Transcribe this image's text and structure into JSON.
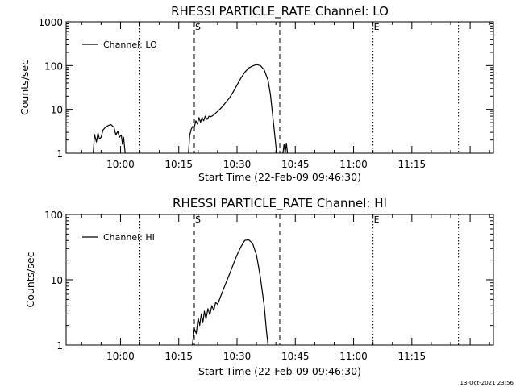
{
  "chart_data": [
    {
      "type": "line",
      "title": "RHESSI PARTICLE_RATE Channel: LO",
      "xlabel": "Start Time (22-Feb-09 09:46:30)",
      "ylabel": "Counts/sec",
      "y_scale": "log",
      "ylim": [
        1,
        1000
      ],
      "y_ticks": [
        1,
        10,
        100,
        1000
      ],
      "y_tick_labels": [
        "1",
        "10",
        "100",
        "1000"
      ],
      "xlim": [
        "09:46:30",
        "11:36:30"
      ],
      "x_ticks": [
        "10:00",
        "10:15",
        "10:30",
        "10:45",
        "11:00",
        "11:15"
      ],
      "legend_position": "top-left",
      "grid": false,
      "markers": [
        {
          "time": "10:05",
          "style": "dotted",
          "label": ""
        },
        {
          "time": "10:19",
          "style": "dashed",
          "label": "S"
        },
        {
          "time": "10:41",
          "style": "dashed",
          "label": ""
        },
        {
          "time": "11:05",
          "style": "dotted",
          "label": "E"
        },
        {
          "time": "11:27",
          "style": "dotted",
          "label": ""
        }
      ],
      "series": [
        {
          "name": "Channel: LO",
          "color": "#000000",
          "segments": [
            [
              [
                "09:53",
                1
              ],
              [
                "09:53.3",
                2.7
              ],
              [
                "09:53.8",
                1.8
              ],
              [
                "09:54.2",
                2.9
              ],
              [
                "09:54.6",
                2.1
              ],
              [
                "09:55",
                2.3
              ],
              [
                "09:55.5",
                3.4
              ],
              [
                "09:56",
                3.8
              ],
              [
                "09:56.7",
                4.2
              ],
              [
                "09:57.5",
                4.5
              ],
              [
                "09:58.3",
                3.9
              ],
              [
                "09:58.8",
                2.6
              ],
              [
                "09:59.3",
                3.2
              ],
              [
                "09:59.7",
                2.3
              ],
              [
                "10:00.2",
                2.6
              ],
              [
                "10:00.5",
                1.6
              ],
              [
                "10:00.8",
                2.3
              ],
              [
                "10:01.2",
                1
              ]
            ],
            [
              [
                "10:17.5",
                1
              ],
              [
                "10:17.8",
                2.5
              ],
              [
                "10:18.2",
                3.5
              ],
              [
                "10:18.6",
                4.1
              ],
              [
                "10:19",
                3.9
              ],
              [
                "10:19.4",
                5.5
              ],
              [
                "10:19.8",
                4.6
              ],
              [
                "10:20.2",
                6.5
              ],
              [
                "10:20.6",
                5.1
              ],
              [
                "10:21",
                6.6
              ],
              [
                "10:21.4",
                5.5
              ],
              [
                "10:21.8",
                7
              ],
              [
                "10:22.3",
                5.9
              ],
              [
                "10:22.8",
                7
              ],
              [
                "10:23.3",
                6.8
              ],
              [
                "10:24",
                7.5
              ],
              [
                "10:25",
                9
              ],
              [
                "10:26",
                11
              ],
              [
                "10:27",
                14
              ],
              [
                "10:28",
                18
              ],
              [
                "10:29",
                25
              ],
              [
                "10:30",
                36
              ],
              [
                "10:31",
                52
              ],
              [
                "10:32",
                70
              ],
              [
                "10:33",
                88
              ],
              [
                "10:34",
                98
              ],
              [
                "10:35",
                105
              ],
              [
                "10:36",
                100
              ],
              [
                "10:37",
                80
              ],
              [
                "10:38",
                46
              ],
              [
                "10:38.6",
                22
              ],
              [
                "10:39.2",
                7
              ],
              [
                "10:39.8",
                2.2
              ],
              [
                "10:40.2",
                1
              ]
            ],
            [
              [
                "10:41.8",
                1
              ],
              [
                "10:42.1",
                1.6
              ],
              [
                "10:42.4",
                1
              ],
              [
                "10:42.7",
                1.7
              ],
              [
                "10:43",
                1
              ]
            ]
          ]
        }
      ]
    },
    {
      "type": "line",
      "title": "RHESSI PARTICLE_RATE Channel: HI",
      "xlabel": "Start Time (22-Feb-09 09:46:30)",
      "ylabel": "Counts/sec",
      "y_scale": "log",
      "ylim": [
        1,
        100
      ],
      "y_ticks": [
        1,
        10,
        100
      ],
      "y_tick_labels": [
        "1",
        "10",
        "100"
      ],
      "xlim": [
        "09:46:30",
        "11:36:30"
      ],
      "x_ticks": [
        "10:00",
        "10:15",
        "10:30",
        "10:45",
        "11:00",
        "11:15"
      ],
      "legend_position": "top-left",
      "grid": false,
      "markers": [
        {
          "time": "10:05",
          "style": "dotted",
          "label": ""
        },
        {
          "time": "10:19",
          "style": "dashed",
          "label": "S"
        },
        {
          "time": "10:41",
          "style": "dashed",
          "label": ""
        },
        {
          "time": "11:05",
          "style": "dotted",
          "label": "E"
        },
        {
          "time": "11:27",
          "style": "dotted",
          "label": ""
        }
      ],
      "series": [
        {
          "name": "Channel: HI",
          "color": "#000000",
          "segments": [
            [
              [
                "10:18.5",
                1
              ],
              [
                "10:19",
                1.8
              ],
              [
                "10:19.5",
                1.5
              ],
              [
                "10:20",
                2.6
              ],
              [
                "10:20.4",
                2
              ],
              [
                "10:20.8",
                3
              ],
              [
                "10:21.2",
                2.2
              ],
              [
                "10:21.6",
                3.3
              ],
              [
                "10:22",
                2.5
              ],
              [
                "10:22.5",
                3.6
              ],
              [
                "10:23",
                2.9
              ],
              [
                "10:23.5",
                4
              ],
              [
                "10:24",
                3.4
              ],
              [
                "10:24.5",
                4.5
              ],
              [
                "10:25",
                4.2
              ],
              [
                "10:26",
                6
              ],
              [
                "10:27",
                8.5
              ],
              [
                "10:28",
                12
              ],
              [
                "10:29",
                17
              ],
              [
                "10:30",
                24
              ],
              [
                "10:31",
                32
              ],
              [
                "10:32",
                40
              ],
              [
                "10:33",
                41
              ],
              [
                "10:34",
                36
              ],
              [
                "10:35",
                24
              ],
              [
                "10:36",
                11
              ],
              [
                "10:37",
                4
              ],
              [
                "10:37.6",
                1.6
              ],
              [
                "10:38",
                1
              ]
            ]
          ]
        }
      ]
    }
  ],
  "footer": {
    "timestamp": "13-Oct-2021 23:56"
  }
}
